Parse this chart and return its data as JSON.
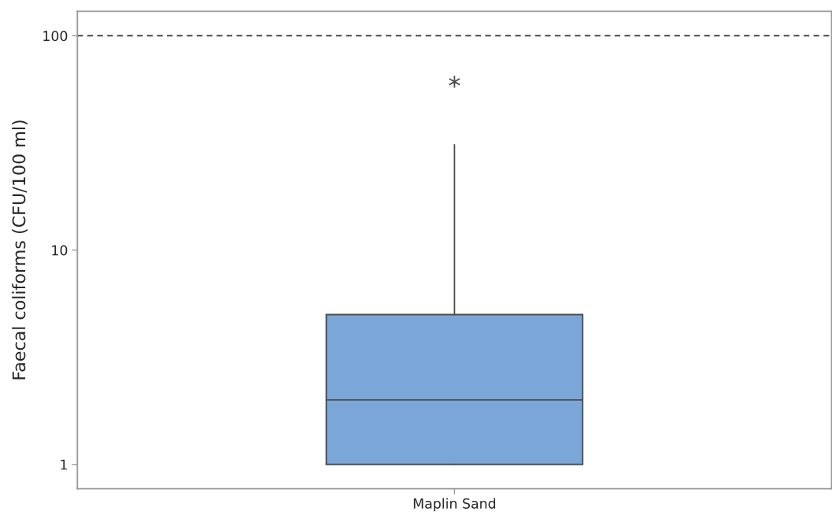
{
  "chart_data": {
    "type": "box",
    "ylabel": "Faecal coliforms (CFU/100 ml)",
    "categories": [
      "Maplin Sand"
    ],
    "series": [
      {
        "color": "#7ba6d8",
        "boxes": [
          {
            "low": 1,
            "q1": 1,
            "median": 2,
            "q3": 5,
            "high": 31,
            "outliers": [
              61
            ]
          }
        ]
      }
    ],
    "log": true,
    "ylim": [
      0.77,
      130
    ],
    "yticks": [
      1,
      10,
      100
    ],
    "ref_lines": [
      {
        "axis": "y",
        "value": 100,
        "line_style": "dashed",
        "color": "#333333"
      }
    ]
  }
}
